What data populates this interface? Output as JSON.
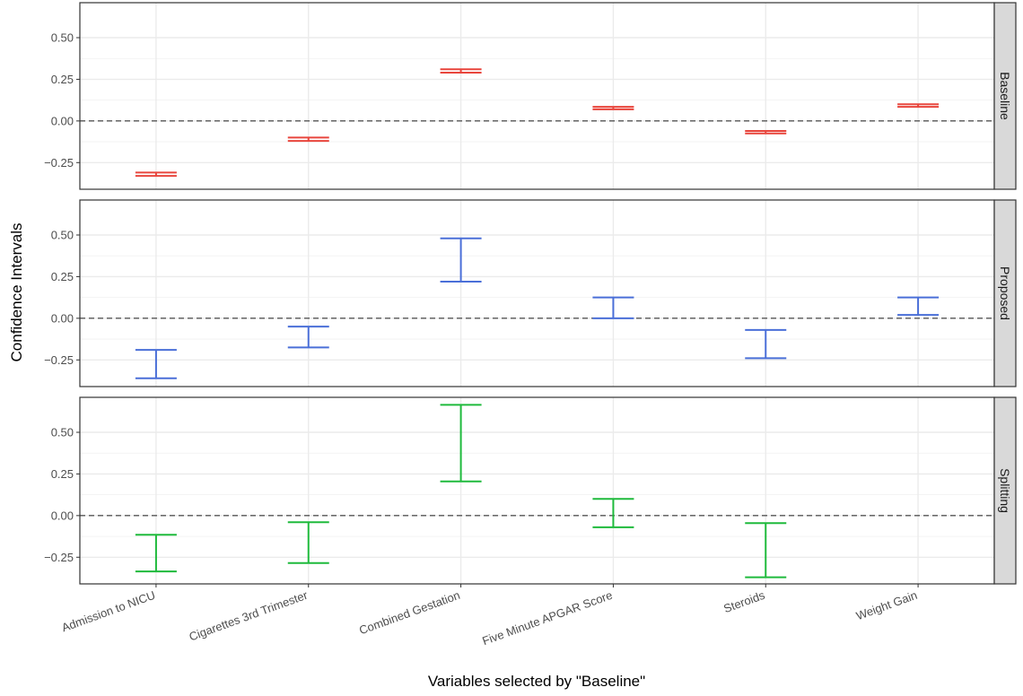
{
  "chart_data": {
    "type": "errorbar",
    "xlabel": "Variables selected by \"Baseline\"",
    "ylabel": "Confidence Intervals",
    "categories": [
      "Admission to NICU",
      "Cigarettes 3rd Trimester",
      "Combined Gestation",
      "Five Minute APGAR Score",
      "Steroids",
      "Weight Gain"
    ],
    "yticks": [
      -0.25,
      0.0,
      0.25,
      0.5
    ],
    "ytick_labels": [
      "−0.25",
      "0.00",
      "0.25",
      "0.50"
    ],
    "ylim": [
      -0.41,
      0.71
    ],
    "reference_line": 0.0,
    "grid": true,
    "panels": [
      {
        "name": "Baseline",
        "color": "#e8453c",
        "lower": [
          -0.33,
          -0.12,
          0.29,
          0.07,
          -0.075,
          0.085
        ],
        "upper": [
          -0.31,
          -0.1,
          0.31,
          0.085,
          -0.06,
          0.1
        ]
      },
      {
        "name": "Proposed",
        "color": "#4a6fd8",
        "lower": [
          -0.36,
          -0.175,
          0.22,
          0.0,
          -0.24,
          0.02
        ],
        "upper": [
          -0.19,
          -0.05,
          0.48,
          0.125,
          -0.07,
          0.125
        ]
      },
      {
        "name": "Splitting",
        "color": "#1fba3c",
        "lower": [
          -0.335,
          -0.285,
          0.205,
          -0.07,
          -0.37,
          null
        ],
        "upper": [
          -0.115,
          -0.04,
          0.665,
          0.1,
          -0.045,
          null
        ]
      }
    ]
  }
}
